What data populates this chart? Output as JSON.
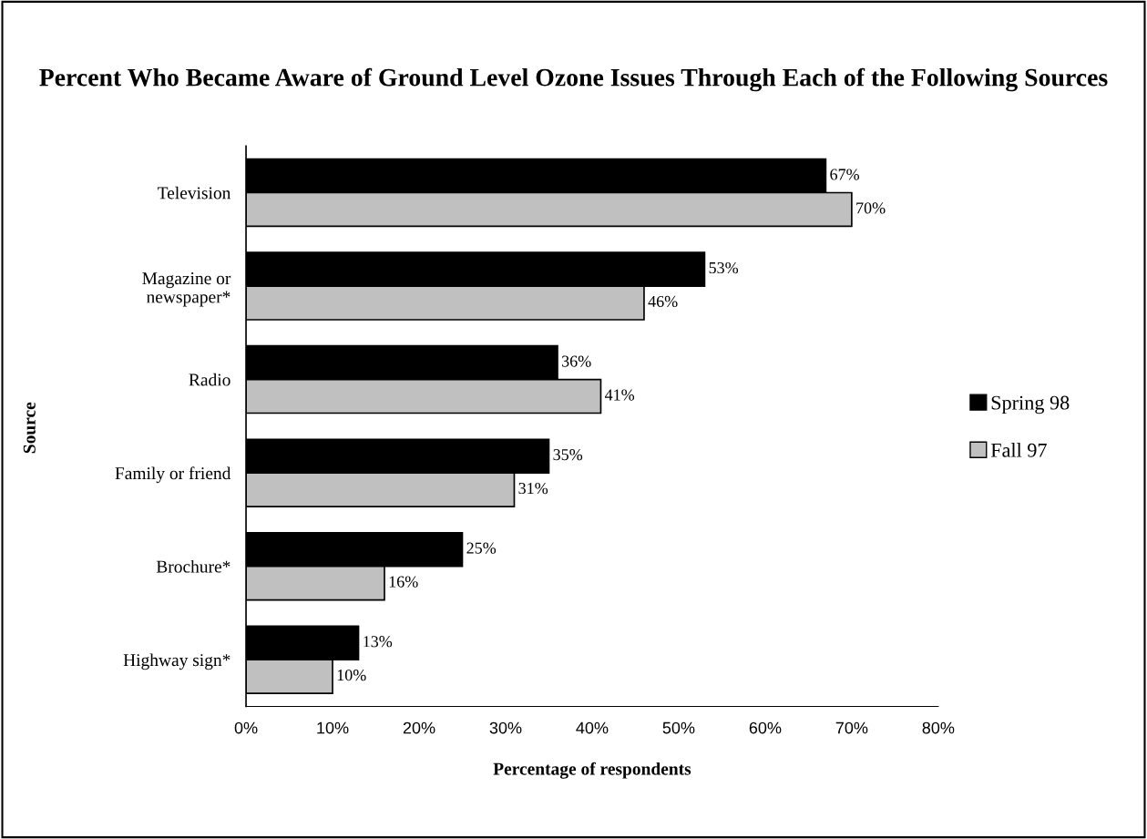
{
  "chart_data": {
    "type": "bar",
    "orientation": "horizontal",
    "title": "Percent Who Became Aware of Ground Level Ozone Issues Through Each of the Following Sources",
    "xlabel": "Percentage of respondents",
    "ylabel": "Source",
    "categories": [
      "Television",
      "Magazine or newspaper*",
      "Radio",
      "Family or friend",
      "Brochure*",
      "Highway sign*"
    ],
    "series": [
      {
        "name": "Spring 98",
        "color": "#000000",
        "values": [
          67,
          53,
          36,
          35,
          25,
          13
        ],
        "value_labels": [
          "67%",
          "53%",
          "36%",
          "35%",
          "25%",
          "13%"
        ]
      },
      {
        "name": "Fall 97",
        "color": "#c0c0c0",
        "values": [
          70,
          46,
          41,
          31,
          16,
          10
        ],
        "value_labels": [
          "70%",
          "46%",
          "41%",
          "31%",
          "16%",
          "10%"
        ]
      }
    ],
    "xlim": [
      0,
      80
    ],
    "xticks": [
      {
        "value": 0,
        "label": "0%"
      },
      {
        "value": 10,
        "label": "10%"
      },
      {
        "value": 20,
        "label": "20%"
      },
      {
        "value": 30,
        "label": "30%"
      },
      {
        "value": 40,
        "label": "40%"
      },
      {
        "value": 50,
        "label": "50%"
      },
      {
        "value": 60,
        "label": "60%"
      },
      {
        "value": 70,
        "label": "70%"
      },
      {
        "value": 80,
        "label": "80%"
      }
    ],
    "grid": false,
    "legend": "right"
  }
}
